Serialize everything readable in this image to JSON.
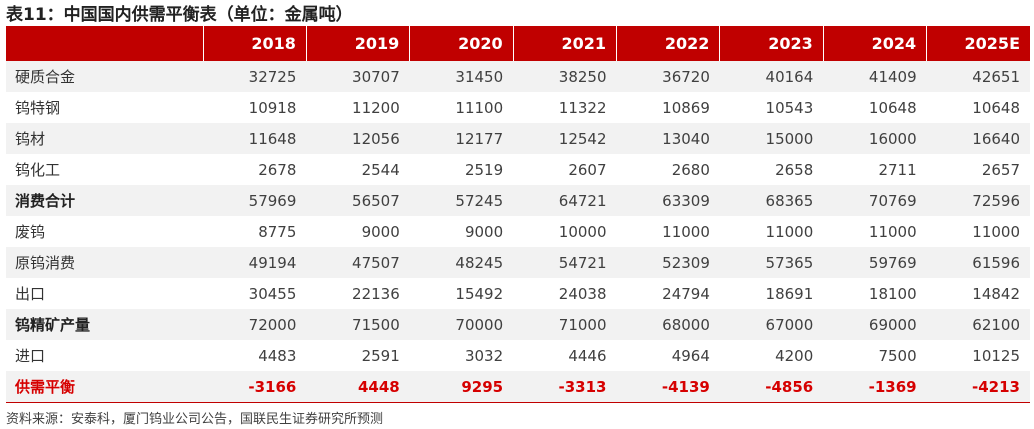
{
  "title": "表11：中国国内供需平衡表（单位：金属吨）",
  "header": {
    "first": "",
    "years": [
      "2018",
      "2019",
      "2020",
      "2021",
      "2022",
      "2023",
      "2024",
      "2025E"
    ]
  },
  "rows": [
    {
      "label": "硬质合金",
      "values": [
        "32725",
        "30707",
        "31450",
        "38250",
        "36720",
        "40164",
        "41409",
        "42651"
      ]
    },
    {
      "label": "钨特钢",
      "values": [
        "10918",
        "11200",
        "11100",
        "11322",
        "10869",
        "10543",
        "10648",
        "10648"
      ]
    },
    {
      "label": "钨材",
      "values": [
        "11648",
        "12056",
        "12177",
        "12542",
        "13040",
        "15000",
        "16000",
        "16640"
      ]
    },
    {
      "label": "钨化工",
      "values": [
        "2678",
        "2544",
        "2519",
        "2607",
        "2680",
        "2658",
        "2711",
        "2657"
      ]
    },
    {
      "label": "消费合计",
      "values": [
        "57969",
        "56507",
        "57245",
        "64721",
        "63309",
        "68365",
        "70769",
        "72596"
      ]
    },
    {
      "label": "废钨",
      "values": [
        "8775",
        "9000",
        "9000",
        "10000",
        "11000",
        "11000",
        "11000",
        "11000"
      ]
    },
    {
      "label": "原钨消费",
      "values": [
        "49194",
        "47507",
        "48245",
        "54721",
        "52309",
        "57365",
        "59769",
        "61596"
      ]
    },
    {
      "label": "出口",
      "values": [
        "30455",
        "22136",
        "15492",
        "24038",
        "24794",
        "18691",
        "18100",
        "14842"
      ]
    },
    {
      "label": "钨精矿产量",
      "values": [
        "72000",
        "71500",
        "70000",
        "71000",
        "68000",
        "67000",
        "69000",
        "62100"
      ]
    },
    {
      "label": "进口",
      "values": [
        "4483",
        "2591",
        "3032",
        "4446",
        "4964",
        "4200",
        "7500",
        "10125"
      ]
    },
    {
      "label": "供需平衡",
      "values": [
        "-3166",
        "4448",
        "9295",
        "-3313",
        "-4139",
        "-4856",
        "-1369",
        "-4213"
      ]
    }
  ],
  "source": "资料来源：安泰科，厦门钨业公司公告，国联民生证券研究所预测",
  "colors": {
    "header_bg": "#c00000",
    "row_shade": "#f2f2f2",
    "balance_text": "#d60000"
  }
}
